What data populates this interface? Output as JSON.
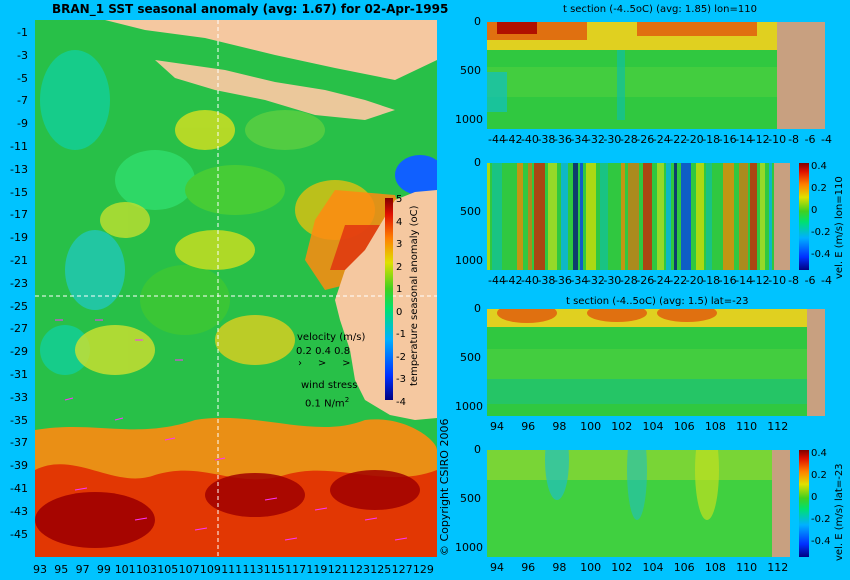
{
  "map": {
    "title": "BRAN_1 SST seasonal anomaly (avg: 1.67) for 02-Apr-1995",
    "lat_ticks": [
      "-1",
      "-3",
      "-5",
      "-7",
      "-9",
      "-11",
      "-13",
      "-15",
      "-17",
      "-19",
      "-21",
      "-23",
      "-25",
      "-27",
      "-29",
      "-31",
      "-33",
      "-35",
      "-37",
      "-39",
      "-41",
      "-43",
      "-45"
    ],
    "lon_ticks": [
      "93",
      "95",
      "97",
      "99",
      "101",
      "103",
      "105",
      "107",
      "109",
      "111",
      "113",
      "115",
      "117",
      "119",
      "121",
      "123",
      "125",
      "127",
      "129"
    ],
    "colorbar_label": "temperature seasonal anomaly (oC)",
    "colorbar_ticks": [
      "5",
      "4",
      "3",
      "2",
      "1",
      "0",
      "-1",
      "-2",
      "-3",
      "-4"
    ],
    "velocity_title": "velocity (m/s)",
    "velocity_scale": "0.2 0.4 0.8",
    "wind_title": "wind stress",
    "wind_scale": "0.1 N/m",
    "wind_sup": "2",
    "copyright": "© Copyright CSIRO 2006",
    "colors": {
      "land": "#f5c8a0",
      "ocean_bg": "#20c040",
      "arrow": "#ff30ff",
      "guide": "#ffffff"
    }
  },
  "panels": [
    {
      "title": "t section (-4..5oC) (avg: 1.85) lon=110",
      "y_ticks": [
        "0",
        "500",
        "1000"
      ],
      "x_ticks": [
        "-44",
        "-42",
        "-40",
        "-38",
        "-36",
        "-34",
        "-32",
        "-30",
        "-28",
        "-26",
        "-24",
        "-22",
        "-20",
        "-18",
        "-16",
        "-14",
        "-12",
        "-10",
        "-8",
        "-6",
        "-4"
      ]
    },
    {
      "title": "",
      "y_ticks": [
        "0",
        "500",
        "1000"
      ],
      "x_ticks": [
        "-44",
        "-42",
        "-40",
        "-38",
        "-36",
        "-34",
        "-32",
        "-30",
        "-28",
        "-26",
        "-24",
        "-22",
        "-20",
        "-18",
        "-16",
        "-14",
        "-12",
        "-10",
        "-8",
        "-6",
        "-4"
      ],
      "colorbar_label": "vel. E (m/s) lon=110",
      "colorbar_ticks": [
        "0.4",
        "0.2",
        "0",
        "-0.2",
        "-0.4"
      ]
    },
    {
      "title": "t section (-4..5oC) (avg: 1.5) lat=-23",
      "y_ticks": [
        "0",
        "500",
        "1000"
      ],
      "x_ticks": [
        "94",
        "96",
        "98",
        "100",
        "102",
        "104",
        "106",
        "108",
        "110",
        "112"
      ]
    },
    {
      "title": "",
      "y_ticks": [
        "0",
        "500",
        "1000"
      ],
      "x_ticks": [
        "94",
        "96",
        "98",
        "100",
        "102",
        "104",
        "106",
        "108",
        "110",
        "112"
      ],
      "colorbar_label": "vel. E (m/s) lat=-23",
      "colorbar_ticks": [
        "0.4",
        "0.2",
        "0",
        "-0.2",
        "-0.4"
      ]
    }
  ]
}
